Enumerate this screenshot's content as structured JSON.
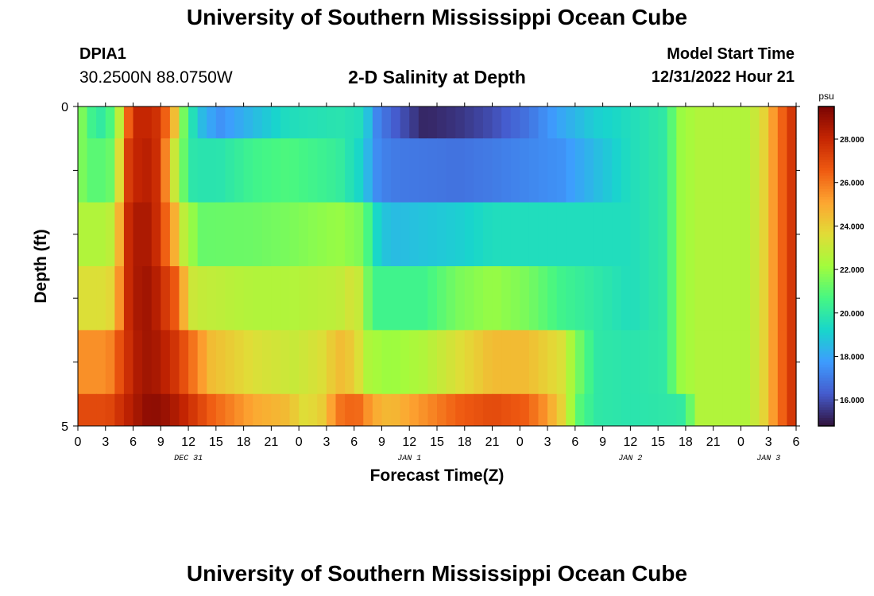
{
  "page": {
    "title": "University of Southern Mississippi Ocean Cube",
    "footer_title": "University of Southern Mississippi Ocean Cube",
    "station": "DPIA1",
    "coords": "30.2500N  88.0750W",
    "subtitle": "2-D Salinity at Depth",
    "model_start_label": "Model Start Time",
    "model_start_value": "12/31/2022 Hour 21"
  },
  "chart_data": {
    "type": "heatmap",
    "title": "2-D Salinity at Depth",
    "xlabel": "Forecast Time(Z)",
    "ylabel": "Depth (ft)",
    "x_tick_labels": [
      "0",
      "3",
      "6",
      "9",
      "12",
      "15",
      "18",
      "21",
      "0",
      "3",
      "6",
      "9",
      "12",
      "15",
      "18",
      "21",
      "0",
      "3",
      "6",
      "9",
      "12",
      "15",
      "18",
      "21",
      "0",
      "3",
      "6"
    ],
    "date_labels": [
      {
        "label": "DEC 31",
        "tick_index": 4
      },
      {
        "label": "JAN 1",
        "tick_index": 12
      },
      {
        "label": "JAN 2",
        "tick_index": 20
      },
      {
        "label": "JAN 3",
        "tick_index": 25
      }
    ],
    "y_tick_labels": [
      "0",
      "5"
    ],
    "ylim": [
      0,
      5
    ],
    "colorbar": {
      "unit": "psu",
      "min": 14.8,
      "max": 29.5,
      "tick_values": [
        16,
        18,
        20,
        22,
        24,
        26,
        28
      ],
      "tick_labels": [
        "16.000",
        "18.000",
        "20.000",
        "22.000",
        "24.000",
        "26.000",
        "28.000"
      ]
    },
    "rows": [
      {
        "depth": "0.0-0.5",
        "keys": [
          [
            0,
            21.5
          ],
          [
            1,
            20.5
          ],
          [
            2,
            20
          ],
          [
            3,
            20.5
          ],
          [
            4,
            21.5
          ],
          [
            5,
            25.5
          ],
          [
            6,
            28
          ],
          [
            8,
            28
          ],
          [
            9,
            27.5
          ],
          [
            10,
            26
          ],
          [
            11,
            24
          ],
          [
            12,
            21
          ],
          [
            13,
            19.5
          ],
          [
            14,
            18.5
          ],
          [
            16,
            17.5
          ],
          [
            20,
            18.5
          ],
          [
            24,
            19.5
          ],
          [
            30,
            19.8
          ],
          [
            33,
            19.5
          ],
          [
            34,
            17.5
          ],
          [
            36,
            16.5
          ],
          [
            40,
            15.2
          ],
          [
            44,
            15.5
          ],
          [
            48,
            16
          ],
          [
            52,
            16.8
          ],
          [
            56,
            18
          ],
          [
            60,
            19
          ],
          [
            64,
            19.5
          ],
          [
            68,
            20
          ],
          [
            69,
            21
          ],
          [
            70,
            22
          ],
          [
            72,
            22.5
          ],
          [
            78,
            22.5
          ],
          [
            80,
            24
          ],
          [
            81,
            25.5
          ],
          [
            83,
            27.5
          ]
        ]
      },
      {
        "depth": "0.5-1.5",
        "keys": [
          [
            0,
            21.5
          ],
          [
            1,
            21
          ],
          [
            3,
            21
          ],
          [
            4,
            22
          ],
          [
            5,
            27
          ],
          [
            6,
            28
          ],
          [
            8,
            28.3
          ],
          [
            9,
            27.5
          ],
          [
            10,
            25
          ],
          [
            11,
            22.5
          ],
          [
            12,
            21
          ],
          [
            13,
            19.8
          ],
          [
            16,
            19.8
          ],
          [
            20,
            20.5
          ],
          [
            24,
            20.8
          ],
          [
            30,
            20.2
          ],
          [
            33,
            19
          ],
          [
            34,
            17.5
          ],
          [
            36,
            17
          ],
          [
            44,
            16.8
          ],
          [
            48,
            17
          ],
          [
            56,
            17.5
          ],
          [
            60,
            18.5
          ],
          [
            64,
            19.5
          ],
          [
            68,
            20
          ],
          [
            69,
            21
          ],
          [
            70,
            22
          ],
          [
            72,
            22.5
          ],
          [
            78,
            22.5
          ],
          [
            80,
            24
          ],
          [
            81,
            25.5
          ],
          [
            83,
            27.5
          ]
        ]
      },
      {
        "depth": "1.5-2.5",
        "keys": [
          [
            0,
            22.5
          ],
          [
            3,
            22.5
          ],
          [
            4,
            23.5
          ],
          [
            5,
            27.5
          ],
          [
            6,
            28.5
          ],
          [
            8,
            28.5
          ],
          [
            9,
            27.5
          ],
          [
            10,
            26
          ],
          [
            11,
            24.5
          ],
          [
            12,
            22.5
          ],
          [
            14,
            21.2
          ],
          [
            20,
            21.3
          ],
          [
            24,
            21.5
          ],
          [
            30,
            22
          ],
          [
            33,
            21.5
          ],
          [
            34,
            19.5
          ],
          [
            36,
            18.5
          ],
          [
            44,
            19
          ],
          [
            48,
            19.5
          ],
          [
            56,
            19.5
          ],
          [
            60,
            19.5
          ],
          [
            64,
            19.5
          ],
          [
            68,
            20
          ],
          [
            69,
            21
          ],
          [
            70,
            22
          ],
          [
            72,
            22.5
          ],
          [
            78,
            22.5
          ],
          [
            80,
            24
          ],
          [
            81,
            25.5
          ],
          [
            83,
            27.5
          ]
        ]
      },
      {
        "depth": "2.5-3.5",
        "keys": [
          [
            0,
            23.5
          ],
          [
            3,
            23.5
          ],
          [
            4,
            24.5
          ],
          [
            5,
            27.5
          ],
          [
            6,
            28.5
          ],
          [
            8,
            28.8
          ],
          [
            9,
            28
          ],
          [
            11,
            26.5
          ],
          [
            12,
            24.5
          ],
          [
            13,
            23
          ],
          [
            20,
            22.5
          ],
          [
            24,
            22.5
          ],
          [
            30,
            22.8
          ],
          [
            32,
            23.5
          ],
          [
            33,
            22
          ],
          [
            34,
            20.5
          ],
          [
            36,
            20.5
          ],
          [
            40,
            20.5
          ],
          [
            44,
            21.5
          ],
          [
            48,
            22
          ],
          [
            52,
            21.5
          ],
          [
            56,
            20.5
          ],
          [
            60,
            20
          ],
          [
            64,
            19.5
          ],
          [
            68,
            20
          ],
          [
            69,
            21
          ],
          [
            70,
            22
          ],
          [
            72,
            22.5
          ],
          [
            78,
            22.5
          ],
          [
            80,
            24
          ],
          [
            81,
            25.5
          ],
          [
            83,
            27.5
          ]
        ]
      },
      {
        "depth": "3.5-4.5",
        "keys": [
          [
            0,
            25.5
          ],
          [
            3,
            25.5
          ],
          [
            4,
            26.5
          ],
          [
            5,
            27.5
          ],
          [
            7,
            28.8
          ],
          [
            9,
            28.5
          ],
          [
            11,
            27.5
          ],
          [
            13,
            26
          ],
          [
            15,
            24.5
          ],
          [
            20,
            23.5
          ],
          [
            25,
            23
          ],
          [
            28,
            23.5
          ],
          [
            30,
            24.5
          ],
          [
            32,
            24
          ],
          [
            33,
            22.5
          ],
          [
            36,
            22
          ],
          [
            40,
            22.5
          ],
          [
            44,
            23.5
          ],
          [
            48,
            24.5
          ],
          [
            52,
            24.5
          ],
          [
            56,
            23.5
          ],
          [
            58,
            21.5
          ],
          [
            60,
            20
          ],
          [
            64,
            19.8
          ],
          [
            68,
            20
          ],
          [
            69,
            21
          ],
          [
            70,
            22
          ],
          [
            72,
            22.5
          ],
          [
            78,
            22.5
          ],
          [
            80,
            24
          ],
          [
            81,
            25.5
          ],
          [
            83,
            27.5
          ]
        ]
      },
      {
        "depth": "4.5-5.0",
        "keys": [
          [
            0,
            27
          ],
          [
            3,
            27
          ],
          [
            4,
            27.5
          ],
          [
            6,
            28.5
          ],
          [
            8,
            29.2
          ],
          [
            10,
            28.8
          ],
          [
            12,
            28
          ],
          [
            15,
            26.5
          ],
          [
            20,
            25
          ],
          [
            24,
            24.5
          ],
          [
            26,
            23.5
          ],
          [
            28,
            24
          ],
          [
            30,
            26
          ],
          [
            32,
            26.5
          ],
          [
            34,
            25
          ],
          [
            36,
            24.5
          ],
          [
            40,
            25.5
          ],
          [
            44,
            26.5
          ],
          [
            48,
            27
          ],
          [
            52,
            26.5
          ],
          [
            54,
            25.5
          ],
          [
            56,
            24
          ],
          [
            57,
            22.5
          ],
          [
            58,
            21
          ],
          [
            60,
            20
          ],
          [
            64,
            19.8
          ],
          [
            70,
            20
          ],
          [
            71,
            21
          ],
          [
            72,
            22.5
          ],
          [
            78,
            22.5
          ],
          [
            80,
            24
          ],
          [
            81,
            25.5
          ],
          [
            83,
            27.5
          ]
        ]
      }
    ]
  }
}
